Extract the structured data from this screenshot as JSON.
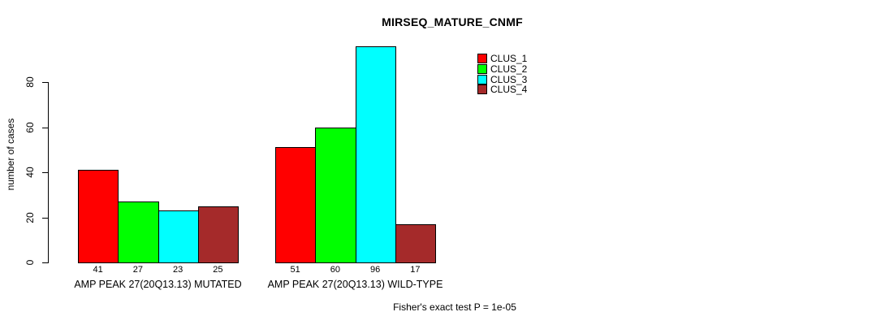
{
  "title": "MIRSEQ_MATURE_CNMF",
  "footer": "Fisher's exact test P = 1e-05",
  "chart_data": {
    "type": "bar",
    "title": "MIRSEQ_MATURE_CNMF",
    "xlabel": "",
    "ylabel": "number of cases",
    "ylim": [
      0,
      96
    ],
    "yticks": [
      0,
      20,
      40,
      60,
      80
    ],
    "grid": false,
    "legend_position": "top-right",
    "categories": [
      "AMP PEAK 27(20Q13.13) MUTATED",
      "AMP PEAK 27(20Q13.13) WILD-TYPE"
    ],
    "series": [
      {
        "name": "CLUS_1",
        "color": "#FF0000",
        "values": [
          41,
          51
        ]
      },
      {
        "name": "CLUS_2",
        "color": "#00FF00",
        "values": [
          27,
          60
        ]
      },
      {
        "name": "CLUS_3",
        "color": "#00FFFF",
        "values": [
          23,
          96
        ]
      },
      {
        "name": "CLUS_4",
        "color": "#A52A2A",
        "values": [
          25,
          17
        ]
      }
    ],
    "bar_value_labels": [
      [
        41,
        27,
        23,
        25
      ],
      [
        51,
        60,
        96,
        17
      ]
    ],
    "annotation": "Fisher's exact test P = 1e-05"
  }
}
